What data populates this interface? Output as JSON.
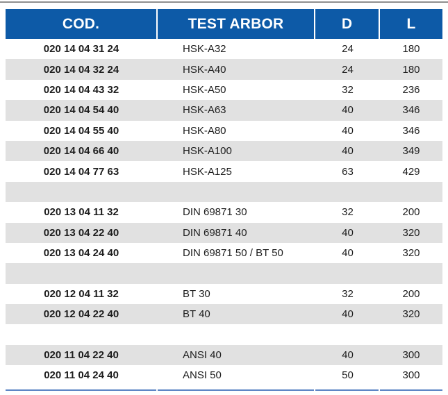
{
  "colors": {
    "header_bg": "#0d5aa7",
    "row_alt": "#e1e1e1",
    "footer_rule": "#5b84c4",
    "top_rule": "#8f8f8f",
    "text": "#1d1d1d"
  },
  "table": {
    "columns": [
      {
        "label": "COD."
      },
      {
        "label": "TEST ARBOR"
      },
      {
        "label": "D"
      },
      {
        "label": "L"
      }
    ],
    "rows": [
      {
        "cod": "020 14 04 31 24",
        "arbor": "HSK-A32",
        "d": "24",
        "l": "180"
      },
      {
        "cod": "020 14 04 32 24",
        "arbor": "HSK-A40",
        "d": "24",
        "l": "180"
      },
      {
        "cod": "020 14 04 43 32",
        "arbor": "HSK-A50",
        "d": "32",
        "l": "236"
      },
      {
        "cod": "020 14 04 54 40",
        "arbor": "HSK-A63",
        "d": "40",
        "l": "346"
      },
      {
        "cod": "020 14 04 55 40",
        "arbor": "HSK-A80",
        "d": "40",
        "l": "346"
      },
      {
        "cod": "020 14 04 66 40",
        "arbor": "HSK-A100",
        "d": "40",
        "l": "349"
      },
      {
        "cod": "020 14 04 77 63",
        "arbor": "HSK-A125",
        "d": "63",
        "l": "429"
      },
      {
        "cod": "",
        "arbor": "",
        "d": "",
        "l": ""
      },
      {
        "cod": "020 13 04 11 32",
        "arbor": "DIN 69871 30",
        "d": "32",
        "l": "200"
      },
      {
        "cod": "020 13 04 22 40",
        "arbor": "DIN 69871 40",
        "d": "40",
        "l": "320"
      },
      {
        "cod": "020 13 04 24 40",
        "arbor": "DIN 69871 50 / BT 50",
        "d": "40",
        "l": "320"
      },
      {
        "cod": "",
        "arbor": "",
        "d": "",
        "l": ""
      },
      {
        "cod": "020 12 04 11 32",
        "arbor": "BT 30",
        "d": "32",
        "l": "200"
      },
      {
        "cod": "020 12 04 22 40",
        "arbor": "BT 40",
        "d": "40",
        "l": "320"
      },
      {
        "cod": "",
        "arbor": "",
        "d": "",
        "l": ""
      },
      {
        "cod": "020 11 04 22 40",
        "arbor": "ANSI 40",
        "d": "40",
        "l": "300"
      },
      {
        "cod": "020 11 04 24 40",
        "arbor": "ANSI 50",
        "d": "50",
        "l": "300"
      }
    ]
  }
}
